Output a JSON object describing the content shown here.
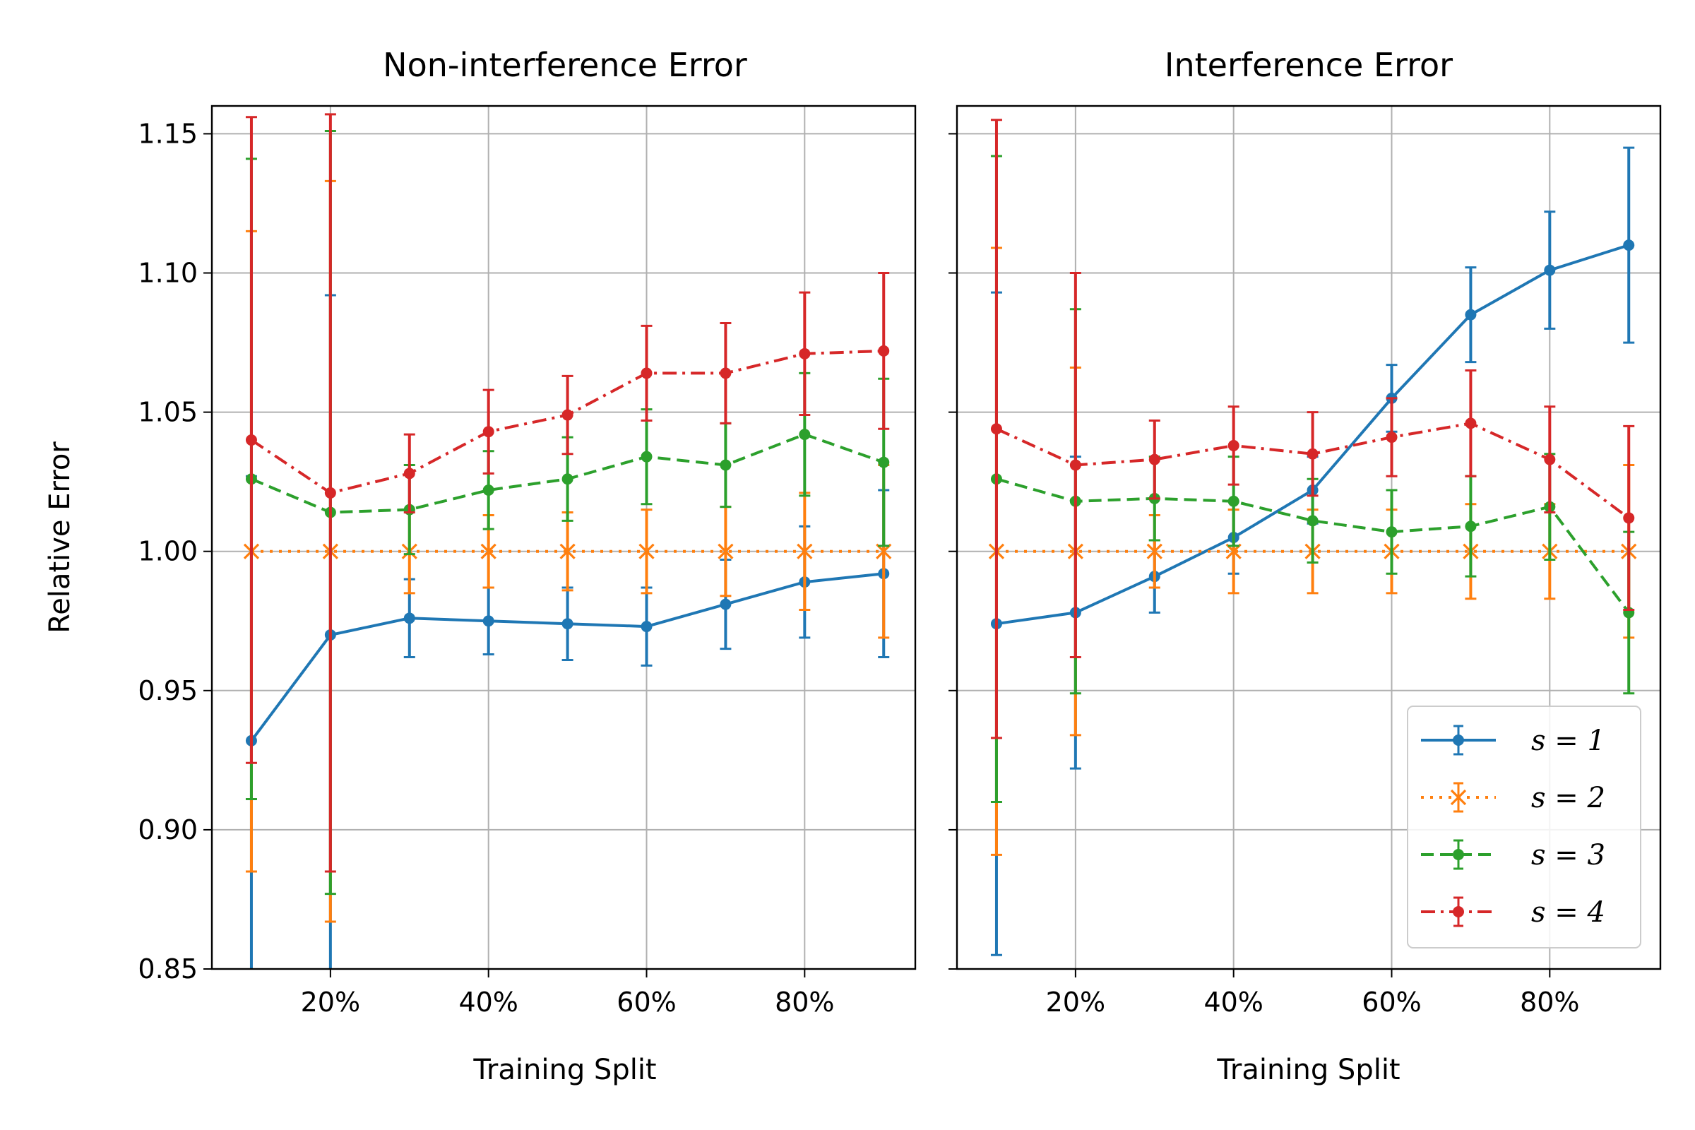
{
  "chart_data": [
    {
      "type": "line",
      "title": "Non-interference Error",
      "xlabel": "Training Split",
      "ylabel": "Relative Error",
      "xlim": [
        5,
        94
      ],
      "ylim": [
        0.85,
        1.16
      ],
      "xticks": [
        20,
        40,
        60,
        80
      ],
      "xtick_labels": [
        "20%",
        "40%",
        "60%",
        "80%"
      ],
      "yticks": [
        0.85,
        0.9,
        0.95,
        1.0,
        1.05,
        1.1,
        1.15
      ],
      "ytick_labels": [
        "0.85",
        "0.90",
        "0.95",
        "1.00",
        "1.05",
        "1.10",
        "1.15"
      ],
      "grid": true,
      "x": [
        10,
        20,
        30,
        40,
        50,
        60,
        70,
        80,
        90
      ],
      "series": [
        {
          "name": "s = 1",
          "color": "#1f77b4",
          "linestyle": "solid",
          "marker": "dot",
          "values": [
            0.932,
            0.97,
            0.976,
            0.975,
            0.974,
            0.973,
            0.981,
            0.989,
            0.992
          ],
          "err": [
            0.095,
            0.122,
            0.014,
            0.012,
            0.013,
            0.014,
            0.016,
            0.02,
            0.03
          ]
        },
        {
          "name": "s = 2",
          "color": "#ff7f0e",
          "linestyle": "dotted",
          "marker": "x",
          "values": [
            1.0,
            1.0,
            1.0,
            1.0,
            1.0,
            1.0,
            1.0,
            1.0,
            1.0
          ],
          "err": [
            0.115,
            0.133,
            0.015,
            0.013,
            0.014,
            0.015,
            0.016,
            0.021,
            0.031
          ]
        },
        {
          "name": "s = 3",
          "color": "#2ca02c",
          "linestyle": "dashed",
          "marker": "dot",
          "values": [
            1.026,
            1.014,
            1.015,
            1.022,
            1.026,
            1.034,
            1.031,
            1.042,
            1.032
          ],
          "err": [
            0.115,
            0.137,
            0.016,
            0.014,
            0.015,
            0.017,
            0.015,
            0.022,
            0.03
          ]
        },
        {
          "name": "s = 4",
          "color": "#d62728",
          "linestyle": "dashdot",
          "marker": "dot",
          "values": [
            1.04,
            1.021,
            1.028,
            1.043,
            1.049,
            1.064,
            1.064,
            1.071,
            1.072
          ],
          "err": [
            0.116,
            0.136,
            0.014,
            0.015,
            0.014,
            0.017,
            0.018,
            0.022,
            0.028
          ]
        }
      ]
    },
    {
      "type": "line",
      "title": "Interference Error",
      "xlabel": "Training Split",
      "ylabel": "",
      "xlim": [
        5,
        94
      ],
      "ylim": [
        0.85,
        1.16
      ],
      "xticks": [
        20,
        40,
        60,
        80
      ],
      "xtick_labels": [
        "20%",
        "40%",
        "60%",
        "80%"
      ],
      "yticks": [
        0.85,
        0.9,
        0.95,
        1.0,
        1.05,
        1.1,
        1.15
      ],
      "ytick_labels": [],
      "grid": true,
      "legend": "lower-right",
      "x": [
        10,
        20,
        30,
        40,
        50,
        60,
        70,
        80,
        90
      ],
      "series": [
        {
          "name": "s = 1",
          "color": "#1f77b4",
          "linestyle": "solid",
          "marker": "dot",
          "values": [
            0.974,
            0.978,
            0.991,
            1.005,
            1.022,
            1.055,
            1.085,
            1.101,
            1.11
          ],
          "err": [
            0.119,
            0.056,
            0.013,
            0.013,
            0.012,
            0.012,
            0.017,
            0.021,
            0.035
          ]
        },
        {
          "name": "s = 2",
          "color": "#ff7f0e",
          "linestyle": "dotted",
          "marker": "x",
          "values": [
            1.0,
            1.0,
            1.0,
            1.0,
            1.0,
            1.0,
            1.0,
            1.0,
            1.0
          ],
          "err": [
            0.109,
            0.066,
            0.013,
            0.015,
            0.015,
            0.015,
            0.017,
            0.017,
            0.031
          ]
        },
        {
          "name": "s = 3",
          "color": "#2ca02c",
          "linestyle": "dashed",
          "marker": "dot",
          "values": [
            1.026,
            1.018,
            1.019,
            1.018,
            1.011,
            1.007,
            1.009,
            1.016,
            0.978
          ],
          "err": [
            0.116,
            0.069,
            0.015,
            0.016,
            0.015,
            0.015,
            0.018,
            0.019,
            0.029
          ]
        },
        {
          "name": "s = 4",
          "color": "#d62728",
          "linestyle": "dashdot",
          "marker": "dot",
          "values": [
            1.044,
            1.031,
            1.033,
            1.038,
            1.035,
            1.041,
            1.046,
            1.033,
            1.012
          ],
          "err": [
            0.111,
            0.069,
            0.014,
            0.014,
            0.015,
            0.014,
            0.019,
            0.019,
            0.033
          ]
        }
      ]
    }
  ]
}
